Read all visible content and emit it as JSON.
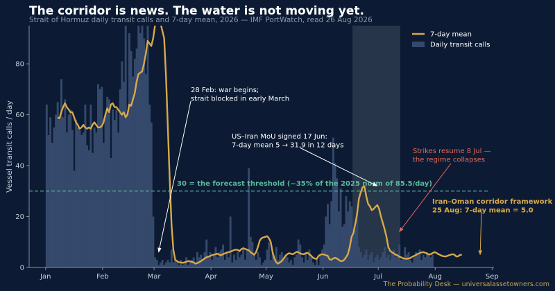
{
  "title": "The corridor is news. The water is not moving yet.",
  "subtitle": "Strait of Hormuz daily transit calls and 7-day mean, 2026 — IMF PortWatch, read 26 Aug 2026",
  "footer": "The Probability Desk — universalassetowners.com",
  "colors": {
    "background": "#0c1b33",
    "bars": "#34496b",
    "line": "#d9a94a",
    "threshold": "#5db89a",
    "shade": "#2c3a4d",
    "annotation": "#ffffff",
    "red_annotation": "#e0685a",
    "gold_annotation": "#d9a94a",
    "axis_text": "#c8d0dc"
  },
  "chart_data": {
    "type": "bar",
    "xlabel": "",
    "ylabel": "Vessel transit calls / day",
    "ylim": [
      0,
      95
    ],
    "yticks": [
      0,
      20,
      40,
      60,
      80
    ],
    "xlim": [
      "2025-12-23",
      "2026-09-02"
    ],
    "xticks": [
      {
        "date": "2026-01-01",
        "label": "Jan"
      },
      {
        "date": "2026-02-01",
        "label": "Feb"
      },
      {
        "date": "2026-03-01",
        "label": "Mar"
      },
      {
        "date": "2026-04-01",
        "label": "Apr"
      },
      {
        "date": "2026-05-01",
        "label": "May"
      },
      {
        "date": "2026-06-01",
        "label": "Jun"
      },
      {
        "date": "2026-07-01",
        "label": "Jul"
      },
      {
        "date": "2026-08-01",
        "label": "Aug"
      },
      {
        "date": "2026-09-01",
        "label": "Sep"
      }
    ],
    "grid": false,
    "legend": {
      "placement": "top-right",
      "entries": [
        {
          "label": "7-day mean",
          "kind": "line"
        },
        {
          "label": "Daily transit calls",
          "kind": "bar"
        }
      ]
    },
    "threshold": {
      "value": 30,
      "label": "30 = the forecast threshold (~35% of the 2025 norm of 85.5/day)"
    },
    "shaded_region": [
      "2026-06-17",
      "2026-07-13"
    ],
    "bars_start_date": "2026-01-01",
    "bars": [
      64,
      52,
      59,
      49,
      55,
      60,
      65,
      58,
      74,
      59,
      66,
      53,
      60,
      62,
      54,
      38,
      58,
      55,
      54,
      52,
      53,
      64,
      48,
      46,
      64,
      45,
      55,
      53,
      72,
      70,
      71,
      49,
      60,
      67,
      66,
      43,
      62,
      58,
      62,
      53,
      70,
      81,
      73,
      96,
      60,
      92,
      85,
      75,
      82,
      86,
      95,
      92,
      96,
      90,
      76,
      95,
      64,
      57,
      20,
      4,
      3,
      1,
      2,
      3,
      1,
      2,
      3,
      2,
      7,
      2,
      3,
      2,
      1,
      3,
      1,
      2,
      4,
      1,
      2,
      3,
      4,
      2,
      6,
      4,
      5,
      3,
      6,
      11,
      4,
      6,
      3,
      5,
      8,
      4,
      6,
      7,
      9,
      3,
      6,
      4,
      20,
      2,
      5,
      3,
      6,
      4,
      5,
      8,
      3,
      7,
      39,
      12,
      10,
      5,
      3,
      6,
      4,
      1,
      2,
      3,
      7,
      10,
      3,
      6,
      4,
      8,
      3,
      5,
      6,
      3,
      5,
      4,
      2,
      3,
      1,
      4,
      5,
      11,
      9,
      4,
      2,
      6,
      3,
      7,
      4,
      2,
      1,
      3,
      1,
      5,
      7,
      9,
      20,
      25,
      17,
      26,
      51,
      41,
      35,
      22,
      31,
      16,
      17,
      28,
      22,
      26,
      24,
      16,
      15,
      22,
      8,
      6,
      4,
      5,
      7,
      3,
      5,
      6,
      2,
      4,
      5,
      3,
      4,
      6,
      8,
      4,
      5,
      3,
      6,
      7,
      4,
      5,
      9,
      3,
      4,
      8,
      5,
      6,
      3,
      2,
      4,
      6,
      5,
      7,
      3,
      5,
      4,
      6,
      5,
      4,
      5
    ],
    "series": [
      {
        "name": "7-day mean",
        "kind": "line",
        "start_date": "2026-01-07",
        "values": [
          59,
          58.5,
          61,
          63,
          64.5,
          63,
          62,
          61,
          61,
          59,
          57,
          56,
          54.5,
          55,
          56,
          55,
          54.5,
          55,
          54.5,
          56,
          57,
          56,
          55,
          55,
          55.5,
          57,
          60,
          62.5,
          61,
          64,
          64.5,
          63,
          63,
          62,
          61,
          60,
          61,
          59,
          60,
          64,
          63.5,
          66,
          68.5,
          73,
          76,
          76.5,
          77,
          80,
          84,
          89,
          88,
          87,
          90,
          95,
          97,
          99,
          96,
          93,
          90,
          75,
          55,
          35,
          17,
          7,
          3,
          2.5,
          2,
          2,
          1.8,
          2,
          2.2,
          2.5,
          2.4,
          2.2,
          2,
          1.5,
          1.7,
          2,
          2.5,
          3,
          3.5,
          4,
          4.2,
          4.5,
          4.8,
          5,
          5.2,
          5.4,
          5,
          4.8,
          5.2,
          5.5,
          5.8,
          6,
          6.2,
          6.5,
          6.8,
          7,
          6.9,
          6.4,
          7.2,
          7.5,
          7.3,
          7,
          6.8,
          6,
          5.5,
          5,
          6,
          8,
          10.5,
          11.5,
          11.8,
          12,
          12.3,
          11.5,
          10,
          6,
          3.5,
          2,
          1.5,
          2,
          2.5,
          3.5,
          4.5,
          5.2,
          5.6,
          5.4,
          5.2,
          5.6,
          6.1,
          6,
          5.5,
          5.3,
          5.2,
          5.5,
          5.8,
          5.2,
          4.6,
          3.8,
          3.5,
          3.3,
          4.5,
          5,
          5.2,
          5.1,
          4.8,
          4.6,
          3.2,
          3,
          3.5,
          3.8,
          3.5,
          3,
          2.5,
          2.5,
          3,
          4,
          5.2,
          8,
          12,
          13.5,
          17,
          21,
          27,
          29.5,
          31.5,
          31.9,
          28,
          25,
          24,
          22.5,
          23,
          23.8,
          24.5,
          23,
          20,
          17.5,
          15,
          12,
          8,
          6.5,
          6,
          5.5,
          5,
          4.8,
          4.2,
          4,
          3.6,
          3.5,
          3.4,
          3.5,
          3.7,
          4.2,
          4.5,
          4.9,
          5.3,
          5.6,
          5.9,
          6,
          5.8,
          5.5,
          5.1,
          5.2,
          5.6,
          6,
          5.8,
          5.3,
          5,
          4.6,
          4.4,
          4.3,
          4.5,
          4.8,
          5,
          5.2,
          5,
          4.3,
          4.4,
          4.9,
          5
        ]
      }
    ],
    "annotations": [
      {
        "id": "war",
        "lines": [
          "28 Feb: war begins;",
          "strait blocked in early March"
        ],
        "date": "2026-03-03",
        "y": 6
      },
      {
        "id": "mou",
        "lines": [
          "US–Iran MoU signed 17 Jun:",
          "7-day mean 5 → 31.9 in 12 days"
        ],
        "date": "2026-06-30",
        "y": 32
      },
      {
        "id": "strikes",
        "lines": [
          "Strikes resume 8 Jul —",
          "the regime collapses"
        ],
        "date": "2026-07-12",
        "y": 14
      },
      {
        "id": "oman",
        "lines": [
          "Iran–Oman corridor framework",
          "25 Aug: 7-day mean = 5.0"
        ],
        "date": "2026-08-25",
        "y": 5
      }
    ]
  }
}
